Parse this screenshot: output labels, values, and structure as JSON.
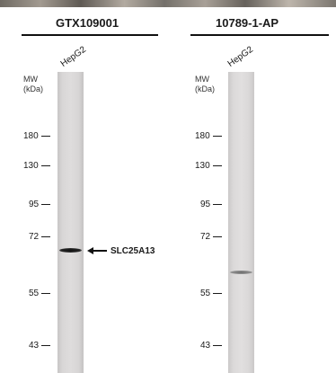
{
  "panels": [
    {
      "antibody": "GTX109001",
      "sample": "HepG2",
      "mw_label_line1": "MW",
      "mw_label_line2": "(kDa)",
      "markers": [
        "180",
        "130",
        "95",
        "72",
        "55",
        "43"
      ],
      "band_marker_kda": 67
    },
    {
      "antibody": "10789-1-AP",
      "sample": "HepG2",
      "mw_label_line1": "MW",
      "mw_label_line2": "(kDa)",
      "markers": [
        "180",
        "130",
        "95",
        "72",
        "55",
        "43"
      ],
      "band_marker_kda": 62
    }
  ],
  "target": {
    "label": "SLC25A13",
    "arrow_icon": "arrow-left-icon"
  },
  "colors": {
    "text": "#1a1a1a",
    "band_strong": "#1a1a1a",
    "band_faint": "#7a7a7a",
    "lane": "#dcdada"
  }
}
